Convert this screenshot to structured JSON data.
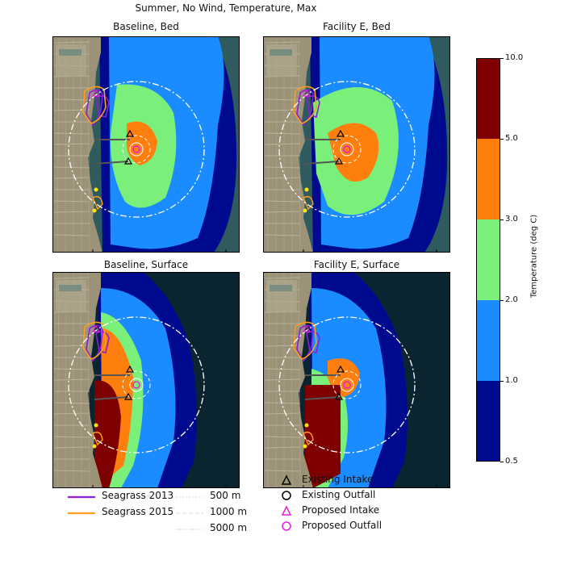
{
  "title": "Summer, No Wind, Temperature, Max",
  "panels": [
    {
      "title": "Baseline, Bed"
    },
    {
      "title": "Facility E, Bed"
    },
    {
      "title": "Baseline, Surface"
    },
    {
      "title": "Facility E, Surface"
    }
  ],
  "chart_data": {
    "type": "heatmap",
    "title": "Summer, No Wind, Temperature, Max",
    "colorbar": {
      "label": "Temperature (deg C)",
      "ticks": [
        "0.5",
        "1.0",
        "2.0",
        "3.0",
        "5.0",
        "10.0"
      ],
      "levels": [
        {
          "from": 0.5,
          "to": 1.0,
          "color": "#000a8f"
        },
        {
          "from": 1.0,
          "to": 2.0,
          "color": "#1a8cff"
        },
        {
          "from": 2.0,
          "to": 3.0,
          "color": "#7af07a"
        },
        {
          "from": 3.0,
          "to": 5.0,
          "color": "#ff7f0e"
        },
        {
          "from": 5.0,
          "to": 10.0,
          "color": "#7f0000"
        }
      ]
    }
  },
  "legend_lines": [
    {
      "label": "Seagrass 2013",
      "color": "#8b1fd6"
    },
    {
      "label": "Seagrass 2015",
      "color": "#ff9e1a"
    },
    {
      "label": "500 m"
    },
    {
      "label": "1000 m"
    },
    {
      "label": "5000 m"
    }
  ],
  "legend_markers": [
    {
      "label": "Existing Intake",
      "color": "#000000",
      "shape": "triangle"
    },
    {
      "label": "Existing Outfall",
      "color": "#000000",
      "shape": "circle"
    },
    {
      "label": "Proposed Intake",
      "color": "#e020d8",
      "shape": "triangle"
    },
    {
      "label": "Proposed Outfall",
      "color": "#e020d8",
      "shape": "circle"
    }
  ]
}
